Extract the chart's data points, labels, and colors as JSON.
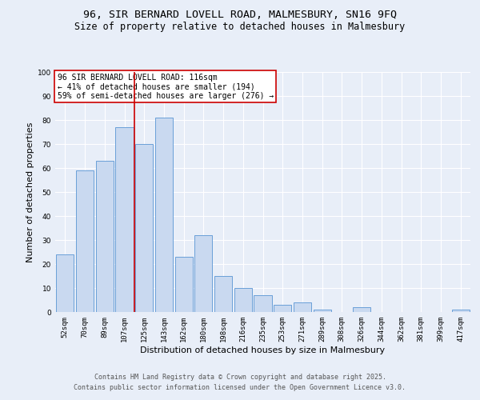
{
  "title_line1": "96, SIR BERNARD LOVELL ROAD, MALMESBURY, SN16 9FQ",
  "title_line2": "Size of property relative to detached houses in Malmesbury",
  "xlabel": "Distribution of detached houses by size in Malmesbury",
  "ylabel": "Number of detached properties",
  "categories": [
    "52sqm",
    "70sqm",
    "89sqm",
    "107sqm",
    "125sqm",
    "143sqm",
    "162sqm",
    "180sqm",
    "198sqm",
    "216sqm",
    "235sqm",
    "253sqm",
    "271sqm",
    "289sqm",
    "308sqm",
    "326sqm",
    "344sqm",
    "362sqm",
    "381sqm",
    "399sqm",
    "417sqm"
  ],
  "values": [
    24,
    59,
    63,
    77,
    70,
    81,
    23,
    32,
    15,
    10,
    7,
    3,
    4,
    1,
    0,
    2,
    0,
    0,
    0,
    0,
    1
  ],
  "bar_color": "#c9d9f0",
  "bar_edge_color": "#6a9fd8",
  "reference_line_x": 3.5,
  "reference_line_color": "#cc0000",
  "annotation_line1": "96 SIR BERNARD LOVELL ROAD: 116sqm",
  "annotation_line2": "← 41% of detached houses are smaller (194)",
  "annotation_line3": "59% of semi-detached houses are larger (276) →",
  "annotation_box_color": "#cc0000",
  "annotation_box_bg": "#ffffff",
  "ylim": [
    0,
    100
  ],
  "yticks": [
    0,
    10,
    20,
    30,
    40,
    50,
    60,
    70,
    80,
    90,
    100
  ],
  "background_color": "#e8eef8",
  "plot_bg_color": "#e8eef8",
  "grid_color": "#ffffff",
  "footer_line1": "Contains HM Land Registry data © Crown copyright and database right 2025.",
  "footer_line2": "Contains public sector information licensed under the Open Government Licence v3.0.",
  "title_fontsize": 9.5,
  "subtitle_fontsize": 8.5,
  "axis_label_fontsize": 8,
  "tick_fontsize": 6.5,
  "annotation_fontsize": 7,
  "footer_fontsize": 6
}
